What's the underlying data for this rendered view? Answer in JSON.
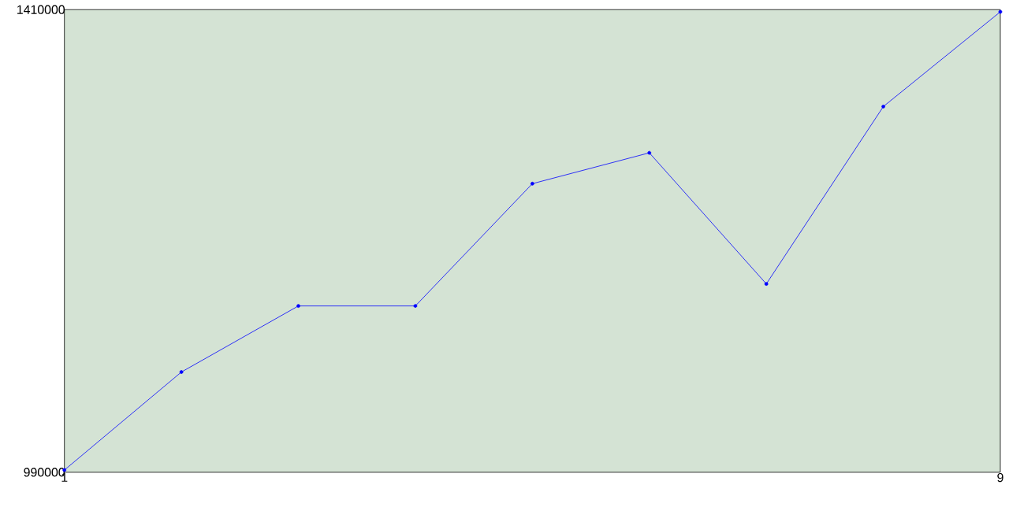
{
  "chart_data": {
    "type": "line",
    "x": [
      1,
      2,
      3,
      4,
      5,
      6,
      7,
      8,
      9
    ],
    "values": [
      992000,
      1081000,
      1141000,
      1141000,
      1252000,
      1280000,
      1161000,
      1322000,
      1408000
    ],
    "color": "#0000ff",
    "marker": "circle",
    "xlim": [
      1,
      9
    ],
    "ylim": [
      990000,
      1410000
    ],
    "xticks": [
      1,
      9
    ],
    "yticks": [
      990000,
      1410000
    ],
    "grid": false
  }
}
